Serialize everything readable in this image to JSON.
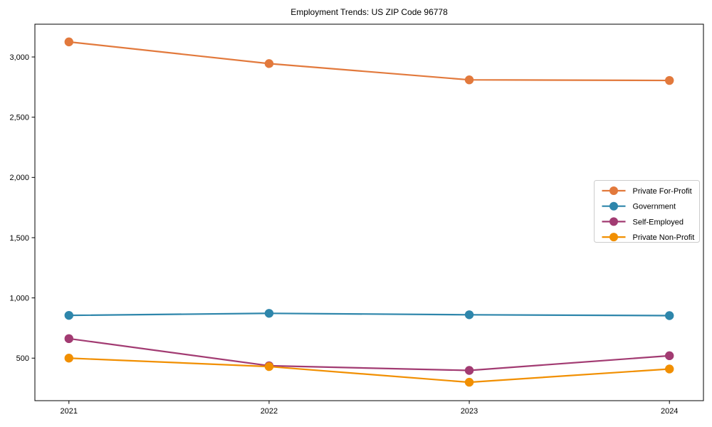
{
  "chart_data": {
    "type": "line",
    "title": "Employment Trends: US ZIP Code 96778",
    "xlabel": "",
    "ylabel": "",
    "x": [
      2021,
      2022,
      2023,
      2024
    ],
    "x_tick_labels": [
      "2021",
      "2022",
      "2023",
      "2024"
    ],
    "series": [
      {
        "name": "Private For-Profit",
        "color": "#E2793C",
        "values": [
          3125,
          2945,
          2810,
          2805
        ]
      },
      {
        "name": "Government",
        "color": "#2E86AB",
        "values": [
          855,
          872,
          860,
          853
        ]
      },
      {
        "name": "Self-Employed",
        "color": "#A23B72",
        "values": [
          662,
          437,
          398,
          520
        ]
      },
      {
        "name": "Private Non-Profit",
        "color": "#F18F01",
        "values": [
          500,
          430,
          300,
          410
        ]
      }
    ],
    "yticks": [
      500,
      1000,
      1500,
      2000,
      2500,
      3000
    ],
    "ytick_labels": [
      "500",
      "1,000",
      "1,500",
      "2,000",
      "2,500",
      "3,000"
    ],
    "ylim": [
      147,
      3272
    ],
    "xlim": [
      2020.83,
      2024.17
    ],
    "grid": false,
    "legend_position": "center-right",
    "axis_color": "#000000",
    "legend_border_color": "#cccccc",
    "background_color": "#ffffff"
  }
}
